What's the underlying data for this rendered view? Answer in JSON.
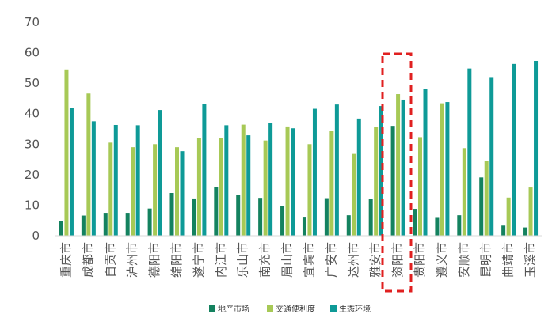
{
  "chart_data": {
    "type": "bar",
    "title": "",
    "xlabel": "",
    "ylabel": "",
    "ylim": [
      0,
      70
    ],
    "yticks": [
      0,
      10,
      20,
      30,
      40,
      50,
      60,
      70
    ],
    "grid": false,
    "legend_position": "bottom",
    "highlight_category": "资阳市",
    "categories": [
      "重庆市",
      "成都市",
      "自贡市",
      "泸州市",
      "德阳市",
      "绵阳市",
      "遂宁市",
      "内江市",
      "乐山市",
      "南充市",
      "眉山市",
      "宜宾市",
      "广安市",
      "达州市",
      "雅安市",
      "资阳市",
      "贵阳市",
      "遵义市",
      "安顺市",
      "昆明市",
      "曲靖市",
      "玉溪市"
    ],
    "series": [
      {
        "name": "地产市场",
        "color": "#14825f",
        "values": [
          4.8,
          6.6,
          7.5,
          7.5,
          8.9,
          14,
          12.2,
          16,
          13.3,
          12.4,
          9.7,
          6.2,
          12.3,
          6.7,
          12.1,
          36,
          8.8,
          6.1,
          6.7,
          19.1,
          3.3,
          2.7
        ]
      },
      {
        "name": "交通便利度",
        "color": "#a7c956",
        "values": [
          54.5,
          46.6,
          30.5,
          29,
          30,
          29,
          31.9,
          31.9,
          36.4,
          31.2,
          35.8,
          30,
          34.4,
          26.8,
          35.6,
          46.4,
          32.3,
          43.4,
          28.7,
          24.4,
          12.5,
          15.8
        ]
      },
      {
        "name": "生态环境",
        "color": "#0e9a97",
        "values": [
          41.9,
          37.5,
          36.3,
          36.2,
          41.2,
          27.7,
          43.2,
          36.2,
          32.9,
          36.9,
          35.2,
          41.6,
          43,
          38.4,
          42.5,
          44.6,
          48.2,
          43.8,
          54.8,
          52,
          56.3,
          57.3
        ]
      }
    ]
  }
}
